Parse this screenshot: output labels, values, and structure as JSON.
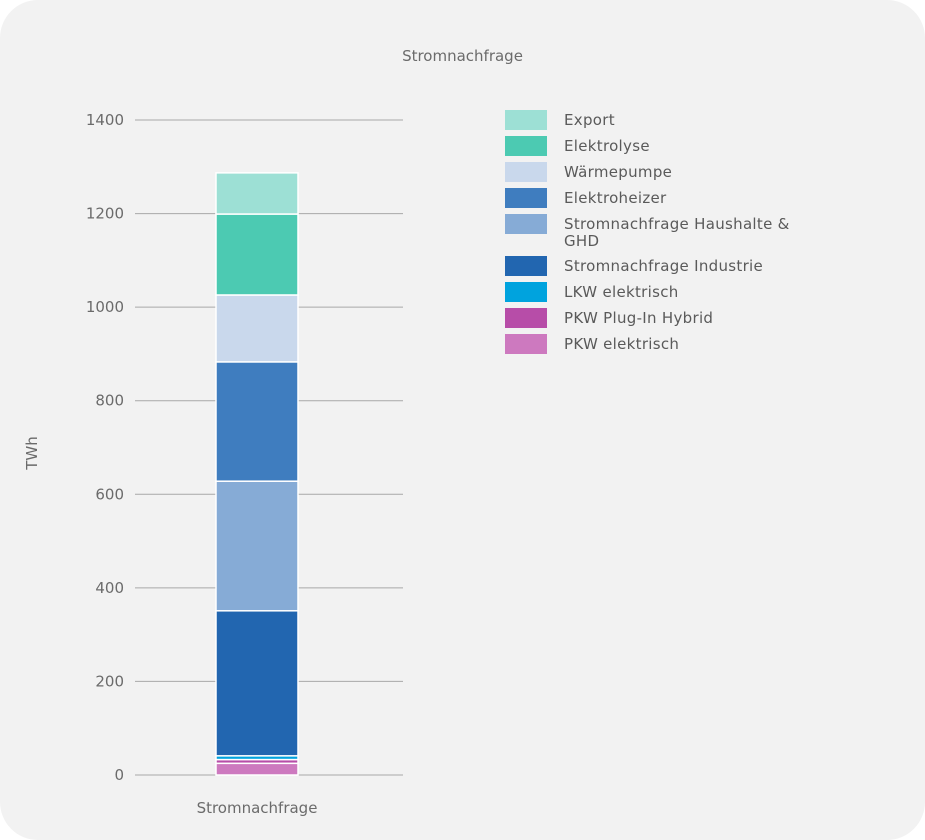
{
  "chart_data": {
    "type": "bar",
    "stacked": true,
    "title": "Stromnachfrage",
    "ylabel": "TWh",
    "xlabel": "",
    "categories": [
      "Stromnachfrage"
    ],
    "ylim": [
      0,
      1400
    ],
    "yticks": [
      0,
      200,
      400,
      600,
      800,
      1000,
      1200,
      1400
    ],
    "grid": true,
    "legend_position": "right",
    "series": [
      {
        "name": "PKW elektrisch",
        "values": [
          25
        ],
        "color": "#cd79bf"
      },
      {
        "name": "PKW Plug-In Hybrid",
        "values": [
          8
        ],
        "color": "#b74da8"
      },
      {
        "name": "LKW elektrisch",
        "values": [
          8
        ],
        "color": "#00a3de"
      },
      {
        "name": "Stromnachfrage Industrie",
        "values": [
          310
        ],
        "color": "#2266b0"
      },
      {
        "name": "Stromnachfrage Haushalte & GHD",
        "values": [
          277
        ],
        "color": "#86abd6"
      },
      {
        "name": "Elektroheizer",
        "values": [
          255
        ],
        "color": "#3f7dbf"
      },
      {
        "name": "Wärmepumpe",
        "values": [
          143
        ],
        "color": "#c9d8ec"
      },
      {
        "name": "Elektrolyse",
        "values": [
          173
        ],
        "color": "#4ccab2"
      },
      {
        "name": "Export",
        "values": [
          88
        ],
        "color": "#9de0d5"
      }
    ]
  }
}
